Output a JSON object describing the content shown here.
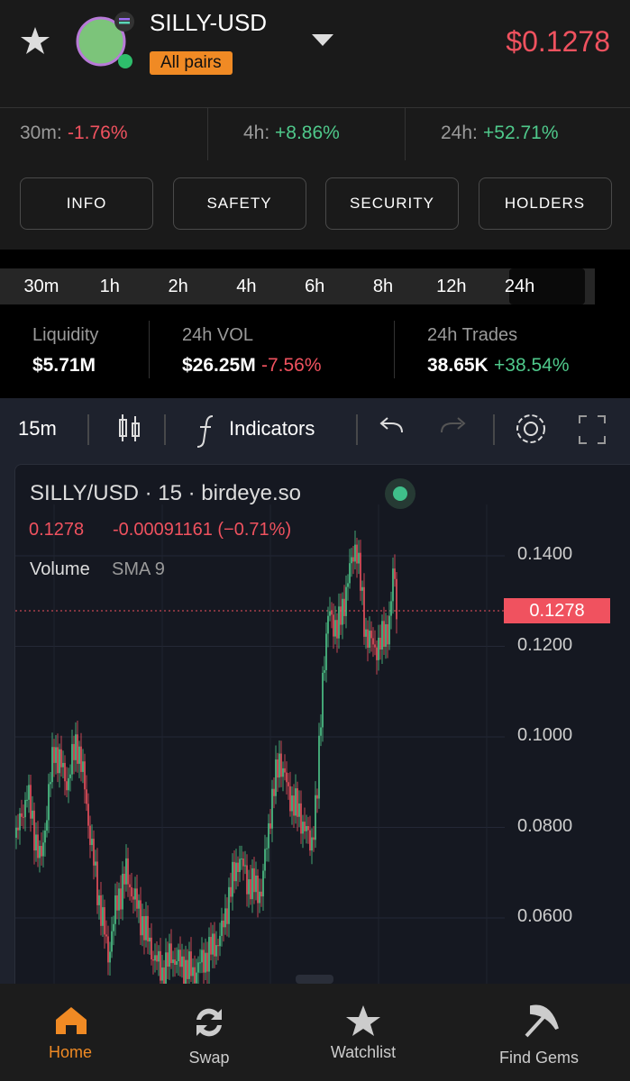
{
  "header": {
    "pair": "SILLY-USD",
    "badge": "All pairs",
    "price": "$0.1278"
  },
  "changes": [
    {
      "label": "30m:",
      "value": "-1.76%"
    },
    {
      "label": "4h:",
      "value": "+8.86%"
    },
    {
      "label": "24h:",
      "value": "+52.71%"
    }
  ],
  "buttons": [
    "INFO",
    "SAFETY",
    "SECURITY",
    "HOLDERS"
  ],
  "timeframes": [
    "30m",
    "1h",
    "2h",
    "4h",
    "6h",
    "8h",
    "12h",
    "24h"
  ],
  "stats": [
    {
      "label": "Liquidity",
      "value": "$5.71M"
    },
    {
      "label": "24h VOL",
      "value": "$26.25M",
      "change": "-7.56%"
    },
    {
      "label": "24h Trades",
      "value": "38.65K",
      "change": "+38.54%"
    }
  ],
  "toolbar": {
    "interval": "15m",
    "indicators": "Indicators"
  },
  "chart": {
    "title": "SILLY/USD · 15 · birdeye.so",
    "last": "0.1278",
    "change": "-0.00091161 (−0.71%)",
    "volume": "Volume",
    "sma": "SMA 9",
    "price_label": "0.1278",
    "axis": [
      "0.1400",
      "0.1200",
      "0.1000",
      "0.0800",
      "0.0600"
    ]
  },
  "nav": [
    "Home",
    "Swap",
    "Watchlist",
    "Find Gems"
  ]
}
